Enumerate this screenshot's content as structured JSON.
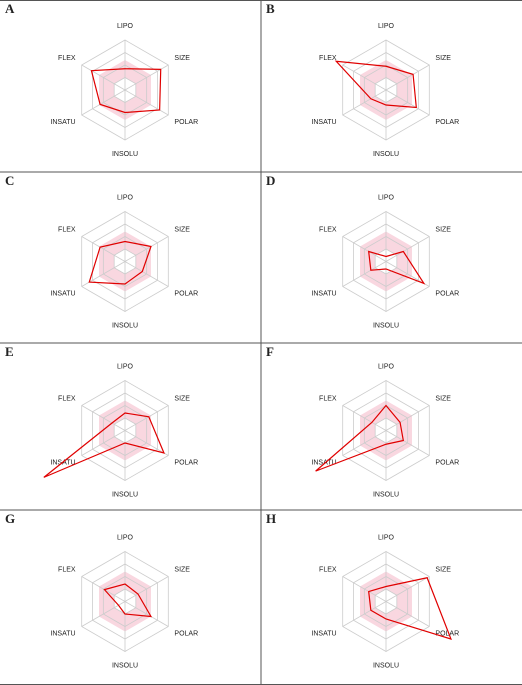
{
  "chart_data": [
    {
      "type": "radar",
      "label": "A",
      "axes": [
        "LIPO",
        "SIZE",
        "POLAR",
        "INSOLU",
        "INSATU",
        "FLEX"
      ],
      "values": [
        1.7,
        3.3,
        3.2,
        1.8,
        2.3,
        3.1
      ],
      "rlim": [
        0,
        4
      ],
      "rticks": [
        1,
        2,
        3,
        4
      ],
      "optimal_range": [
        1,
        2.4
      ],
      "color": "#e00000",
      "range_color": "#f9d7e0"
    },
    {
      "type": "radar",
      "label": "B",
      "axes": [
        "LIPO",
        "SIZE",
        "POLAR",
        "INSOLU",
        "INSATU",
        "FLEX"
      ],
      "values": [
        1.9,
        2.5,
        2.8,
        1.2,
        1.4,
        4.6
      ],
      "rlim": [
        0,
        4
      ],
      "rticks": [
        1,
        2,
        3,
        4
      ],
      "optimal_range": [
        1,
        2.4
      ],
      "color": "#e00000",
      "range_color": "#f9d7e0"
    },
    {
      "type": "radar",
      "label": "C",
      "axes": [
        "LIPO",
        "SIZE",
        "POLAR",
        "INSOLU",
        "INSATU",
        "FLEX"
      ],
      "values": [
        1.6,
        2.4,
        1.6,
        1.8,
        3.3,
        2.3
      ],
      "rlim": [
        0,
        4
      ],
      "rticks": [
        1,
        2,
        3,
        4
      ],
      "optimal_range": [
        1,
        2.4
      ],
      "color": "#e00000",
      "range_color": "#f9d7e0"
    },
    {
      "type": "radar",
      "label": "D",
      "axes": [
        "LIPO",
        "SIZE",
        "POLAR",
        "INSOLU",
        "INSATU",
        "FLEX"
      ],
      "values": [
        0.4,
        1.6,
        3.5,
        0.6,
        1.4,
        1.6
      ],
      "rlim": [
        0,
        4
      ],
      "rticks": [
        1,
        2,
        3,
        4
      ],
      "optimal_range": [
        1,
        2.4
      ],
      "color": "#e00000",
      "range_color": "#f9d7e0"
    },
    {
      "type": "radar",
      "label": "E",
      "axes": [
        "LIPO",
        "SIZE",
        "POLAR",
        "INSOLU",
        "INSATU",
        "FLEX"
      ],
      "values": [
        1.4,
        2.2,
        3.6,
        1.0,
        7.5,
        1.2
      ],
      "rlim": [
        0,
        4
      ],
      "rticks": [
        1,
        2,
        3,
        4
      ],
      "optimal_range": [
        1,
        2.4
      ],
      "color": "#e00000",
      "range_color": "#f9d7e0"
    },
    {
      "type": "radar",
      "label": "F",
      "axes": [
        "LIPO",
        "SIZE",
        "POLAR",
        "INSOLU",
        "INSATU",
        "FLEX"
      ],
      "values": [
        2.0,
        1.3,
        1.6,
        1.1,
        6.5,
        1.3
      ],
      "rlim": [
        0,
        4
      ],
      "rticks": [
        1,
        2,
        3,
        4
      ],
      "optimal_range": [
        1,
        2.4
      ],
      "color": "#e00000",
      "range_color": "#f9d7e0"
    },
    {
      "type": "radar",
      "label": "G",
      "axes": [
        "LIPO",
        "SIZE",
        "POLAR",
        "INSOLU",
        "INSATU",
        "FLEX"
      ],
      "values": [
        1.4,
        1.2,
        2.4,
        1.0,
        0.6,
        1.9
      ],
      "rlim": [
        0,
        4
      ],
      "rticks": [
        1,
        2,
        3,
        4
      ],
      "optimal_range": [
        1,
        2.4
      ],
      "color": "#e00000",
      "range_color": "#f9d7e0"
    },
    {
      "type": "radar",
      "label": "H",
      "axes": [
        "LIPO",
        "SIZE",
        "POLAR",
        "INSOLU",
        "INSATU",
        "FLEX"
      ],
      "values": [
        1.2,
        3.8,
        6.0,
        1.4,
        1.4,
        1.6
      ],
      "rlim": [
        0,
        4
      ],
      "rticks": [
        1,
        2,
        3,
        4
      ],
      "optimal_range": [
        1,
        2.4
      ],
      "color": "#e00000",
      "range_color": "#f9d7e0"
    }
  ]
}
